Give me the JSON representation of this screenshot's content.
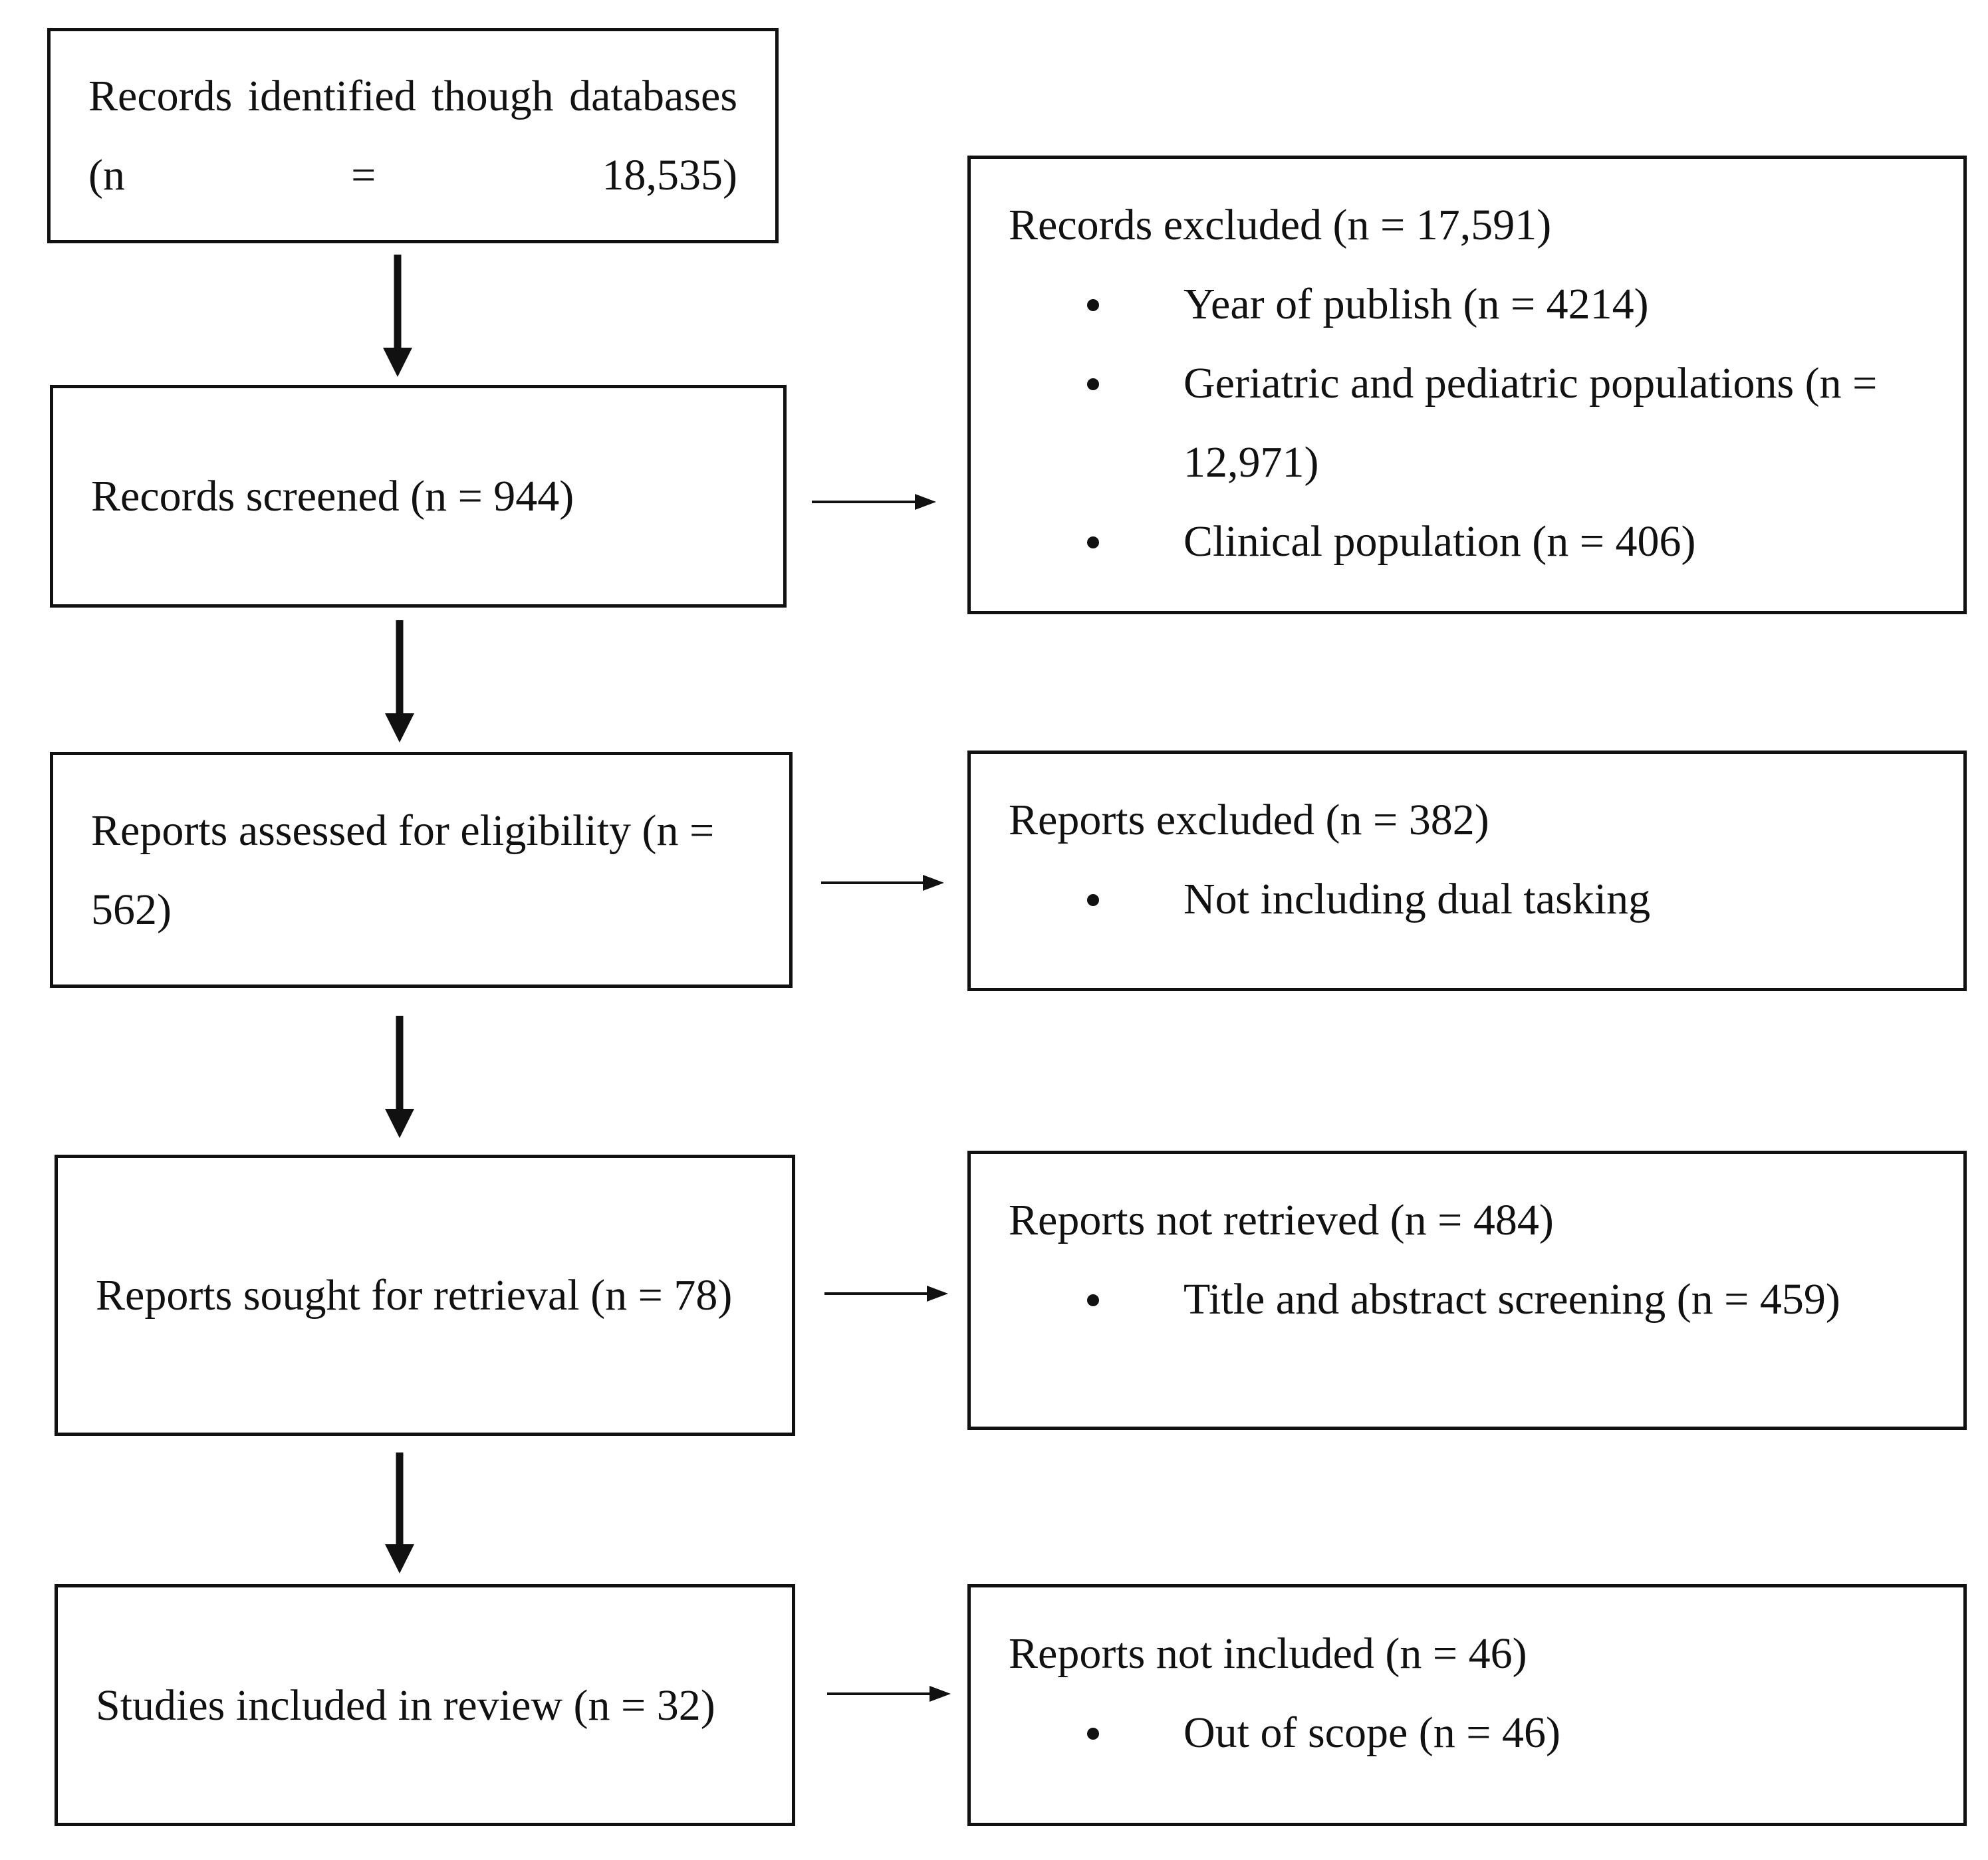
{
  "left": [
    {
      "text": "Records identified though databases (n = 18,535)"
    },
    {
      "text": "Records screened (n = 944)"
    },
    {
      "text": "Reports assessed for eligibility (n = 562)"
    },
    {
      "text": "Reports sought for retrieval (n = 78)"
    },
    {
      "text": "Studies included in review (n = 32)"
    }
  ],
  "right": [
    {
      "title": "Records excluded (n = 17,591)",
      "items": [
        "Year of publish (n = 4214)",
        "Geriatric and pediatric populations (n = 12,971)",
        "Clinical population (n = 406)"
      ]
    },
    {
      "title": "Reports excluded (n = 382)",
      "items": [
        "Not including dual tasking"
      ]
    },
    {
      "title": "Reports not retrieved (n = 484)",
      "items": [
        "Title and abstract screening (n = 459)"
      ]
    },
    {
      "title": "Reports not included (n = 46)",
      "items": [
        "Out of scope (n = 46)"
      ]
    }
  ]
}
